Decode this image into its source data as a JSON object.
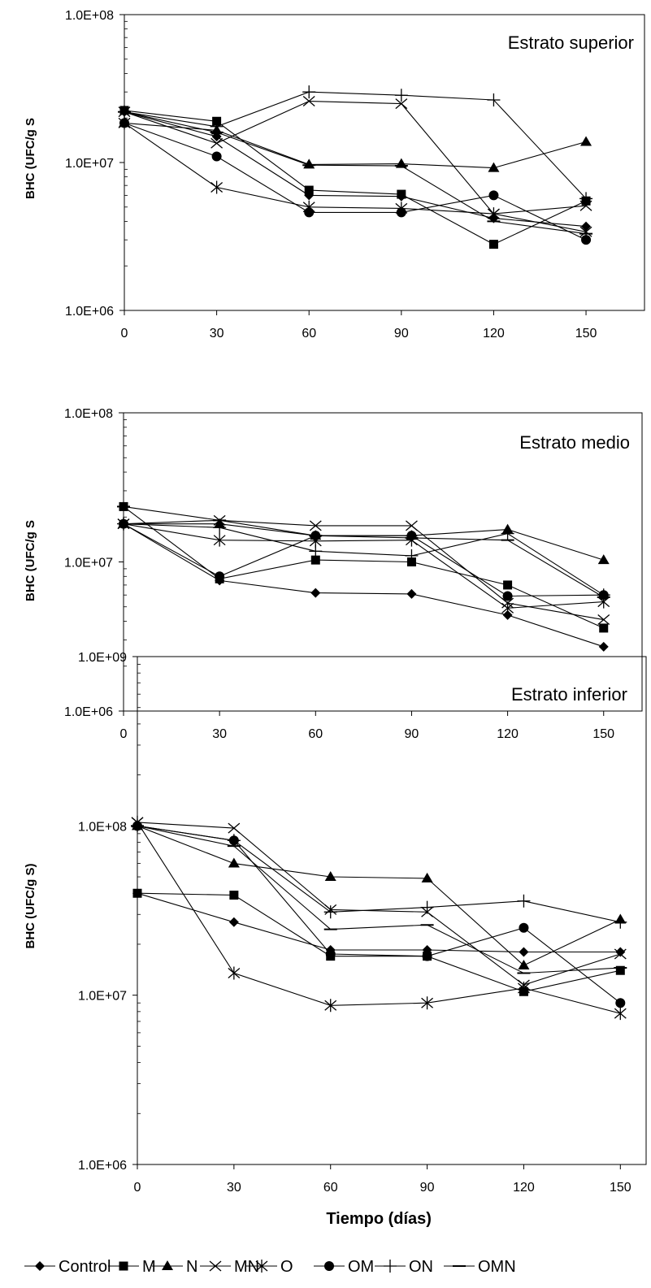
{
  "chart_data": [
    {
      "type": "line",
      "title": "Estrato superior",
      "ylabel": "BHC (UFC/g S",
      "xlabel": "",
      "x": [
        0,
        30,
        60,
        90,
        120,
        150
      ],
      "x_tick_labels": [
        "0",
        "30",
        "60",
        "90",
        "120",
        "150"
      ],
      "y_scale": "log",
      "ylim": [
        1000000,
        100000000
      ],
      "y_tick_labels": [
        "1.0E+06",
        "1.0E+07",
        "1.0E+08"
      ],
      "grid": false,
      "series": [
        {
          "name": "Control",
          "marker": "diamond",
          "values": [
            22000000,
            15000000,
            6000000,
            5900000,
            4200000,
            3700000
          ]
        },
        {
          "name": "M",
          "marker": "square",
          "values": [
            22500000,
            19000000,
            6500000,
            6100000,
            2800000,
            5500000
          ]
        },
        {
          "name": "N",
          "marker": "triangle",
          "values": [
            18500000,
            16500000,
            9700000,
            9800000,
            9200000,
            13800000
          ]
        },
        {
          "name": "MN",
          "marker": "x",
          "values": [
            22000000,
            13500000,
            26000000,
            25000000,
            4500000,
            5100000
          ]
        },
        {
          "name": "O",
          "marker": "asterisk",
          "values": [
            18500000,
            6800000,
            5000000,
            4900000,
            4500000,
            3400000
          ]
        },
        {
          "name": "OM",
          "marker": "circle",
          "values": [
            18500000,
            11000000,
            4600000,
            4600000,
            6000000,
            3000000
          ]
        },
        {
          "name": "ON",
          "marker": "plus",
          "values": [
            22000000,
            17500000,
            30000000,
            28500000,
            26500000,
            5700000
          ]
        },
        {
          "name": "OMN",
          "marker": "dash",
          "values": [
            22000000,
            16000000,
            9600000,
            9500000,
            4000000,
            3300000
          ]
        }
      ]
    },
    {
      "type": "line",
      "title": "Estrato medio",
      "ylabel": "BHC (UFC/g S",
      "xlabel": "",
      "x": [
        0,
        30,
        60,
        90,
        120,
        150
      ],
      "x_tick_labels": [
        "0",
        "30",
        "60",
        "90",
        "120",
        "150"
      ],
      "y_scale": "log",
      "ylim": [
        1000000,
        100000000
      ],
      "y_tick_labels": [
        "1.0E+06",
        "1.0E+07",
        "1.0E+08"
      ],
      "grid": false,
      "series": [
        {
          "name": "Control",
          "marker": "diamond",
          "values": [
            18000000,
            7500000,
            6200000,
            6100000,
            4400000,
            2700000
          ]
        },
        {
          "name": "M",
          "marker": "square",
          "values": [
            23500000,
            7700000,
            10300000,
            10000000,
            7000000,
            3600000
          ]
        },
        {
          "name": "N",
          "marker": "triangle",
          "values": [
            18000000,
            18000000,
            15000000,
            15000000,
            16500000,
            10300000
          ]
        },
        {
          "name": "MN",
          "marker": "x",
          "values": [
            18000000,
            19000000,
            17500000,
            17500000,
            5300000,
            4100000
          ]
        },
        {
          "name": "O",
          "marker": "asterisk",
          "values": [
            18000000,
            14000000,
            13800000,
            14000000,
            4900000,
            5400000
          ]
        },
        {
          "name": "OM",
          "marker": "circle",
          "values": [
            18000000,
            8000000,
            15000000,
            15000000,
            5900000,
            6000000
          ]
        },
        {
          "name": "ON",
          "marker": "plus",
          "values": [
            18000000,
            17000000,
            11800000,
            11000000,
            15500000,
            6000000
          ]
        },
        {
          "name": "OMN",
          "marker": "dash",
          "values": [
            23500000,
            19000000,
            15000000,
            14500000,
            14000000,
            5800000
          ]
        }
      ]
    },
    {
      "type": "line",
      "title": "Estrato inferior",
      "ylabel": "BHC (UFC/g S)",
      "xlabel": "Tiempo (días)",
      "x": [
        0,
        30,
        60,
        90,
        120,
        150
      ],
      "x_tick_labels": [
        "0",
        "30",
        "60",
        "90",
        "120",
        "150"
      ],
      "y_scale": "log",
      "ylim": [
        1000000,
        1000000000
      ],
      "y_tick_labels": [
        "1.0E+06",
        "1.0E+07",
        "1.0E+08",
        "1.0E+09"
      ],
      "grid": false,
      "series": [
        {
          "name": "Control",
          "marker": "diamond",
          "values": [
            40000000,
            27000000,
            18500000,
            18500000,
            18000000,
            18000000
          ]
        },
        {
          "name": "M",
          "marker": "square",
          "values": [
            40000000,
            39000000,
            17000000,
            17000000,
            10500000,
            14000000
          ]
        },
        {
          "name": "N",
          "marker": "triangle",
          "values": [
            100000000,
            60000000,
            50000000,
            49000000,
            15000000,
            28000000
          ]
        },
        {
          "name": "MN",
          "marker": "x",
          "values": [
            105000000,
            97000000,
            32000000,
            31000000,
            11500000,
            17500000
          ]
        },
        {
          "name": "O",
          "marker": "asterisk",
          "values": [
            105000000,
            13500000,
            8700000,
            9000000,
            11000000,
            7800000
          ]
        },
        {
          "name": "OM",
          "marker": "circle",
          "values": [
            100000000,
            82000000,
            17500000,
            17000000,
            25000000,
            9000000
          ]
        },
        {
          "name": "ON",
          "marker": "plus",
          "values": [
            100000000,
            82000000,
            31000000,
            33000000,
            36000000,
            27000000
          ]
        },
        {
          "name": "OMN",
          "marker": "dash",
          "values": [
            100000000,
            76000000,
            24500000,
            26000000,
            13500000,
            14500000
          ]
        }
      ]
    }
  ],
  "legend": {
    "placement": "bottom",
    "entries": [
      {
        "name": "Control",
        "marker": "diamond"
      },
      {
        "name": "M",
        "marker": "square"
      },
      {
        "name": "N",
        "marker": "triangle"
      },
      {
        "name": "MN",
        "marker": "x"
      },
      {
        "name": "O",
        "marker": "asterisk"
      },
      {
        "name": "OM",
        "marker": "circle"
      },
      {
        "name": "ON",
        "marker": "plus"
      },
      {
        "name": "OMN",
        "marker": "dash"
      }
    ]
  },
  "colors": {
    "line": "#000000",
    "background": "#ffffff"
  }
}
